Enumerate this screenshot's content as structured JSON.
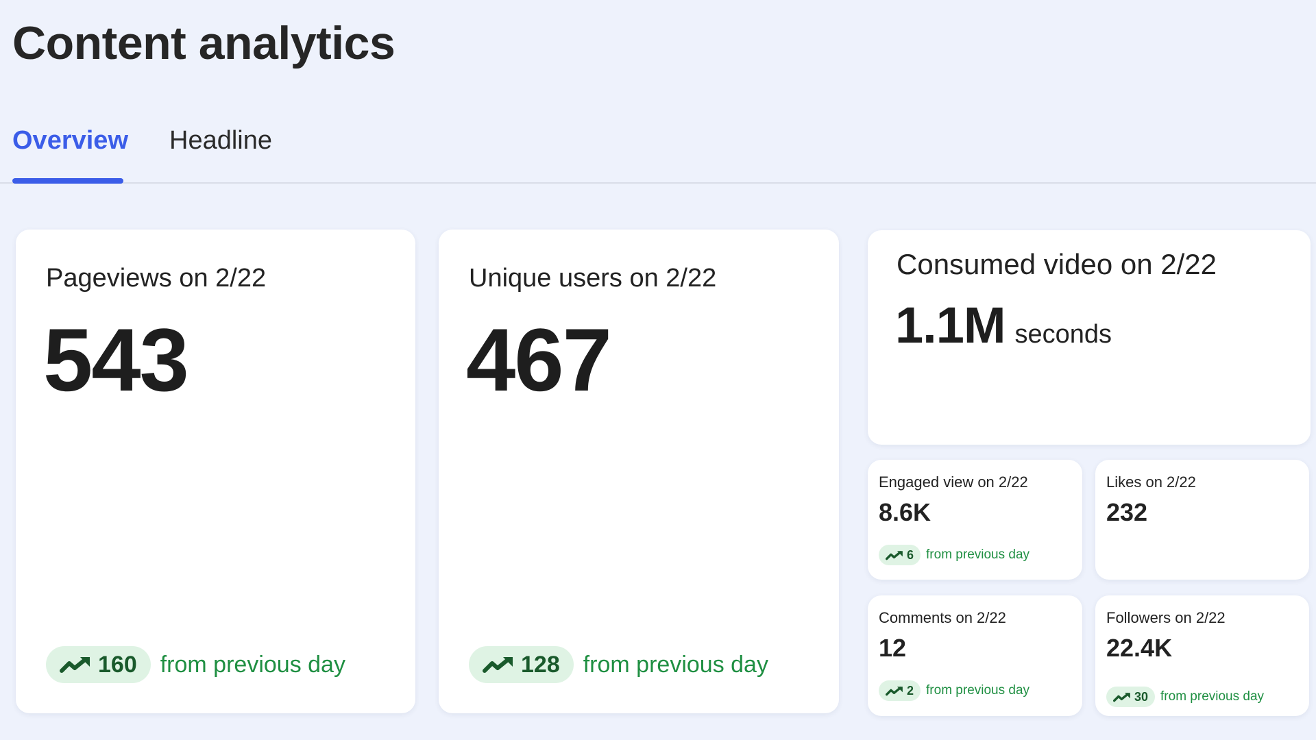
{
  "page": {
    "title": "Content analytics"
  },
  "tabs": [
    {
      "label": "Overview",
      "active": true
    },
    {
      "label": "Headline",
      "active": false
    }
  ],
  "colors": {
    "accent": "#3b5de8",
    "trend_up_text": "#1f8f42",
    "trend_pill_bg": "#dff3e4",
    "background": "#eef2fc"
  },
  "cards": {
    "pageviews": {
      "label": "Pageviews on 2/22",
      "value": "543",
      "delta": "160",
      "delta_text": "from previous day",
      "trend_icon": "trend-up-icon"
    },
    "unique_users": {
      "label": "Unique users on 2/22",
      "value": "467",
      "delta": "128",
      "delta_text": "from previous day",
      "trend_icon": "trend-up-icon"
    },
    "consumed_video": {
      "label": "Consumed video on 2/22",
      "value": "1.1M",
      "unit": "seconds"
    },
    "engaged_view": {
      "label": "Engaged view on 2/22",
      "value": "8.6K",
      "delta": "6",
      "delta_text": "from previous day",
      "trend_icon": "trend-up-icon"
    },
    "likes": {
      "label": "Likes on 2/22",
      "value": "232"
    },
    "comments": {
      "label": "Comments on 2/22",
      "value": "12",
      "delta": "2",
      "delta_text": "from previous day",
      "trend_icon": "trend-up-icon"
    },
    "followers": {
      "label": "Followers on 2/22",
      "value": "22.4K",
      "delta": "30",
      "delta_text": "from previous day",
      "trend_icon": "trend-up-icon"
    }
  }
}
